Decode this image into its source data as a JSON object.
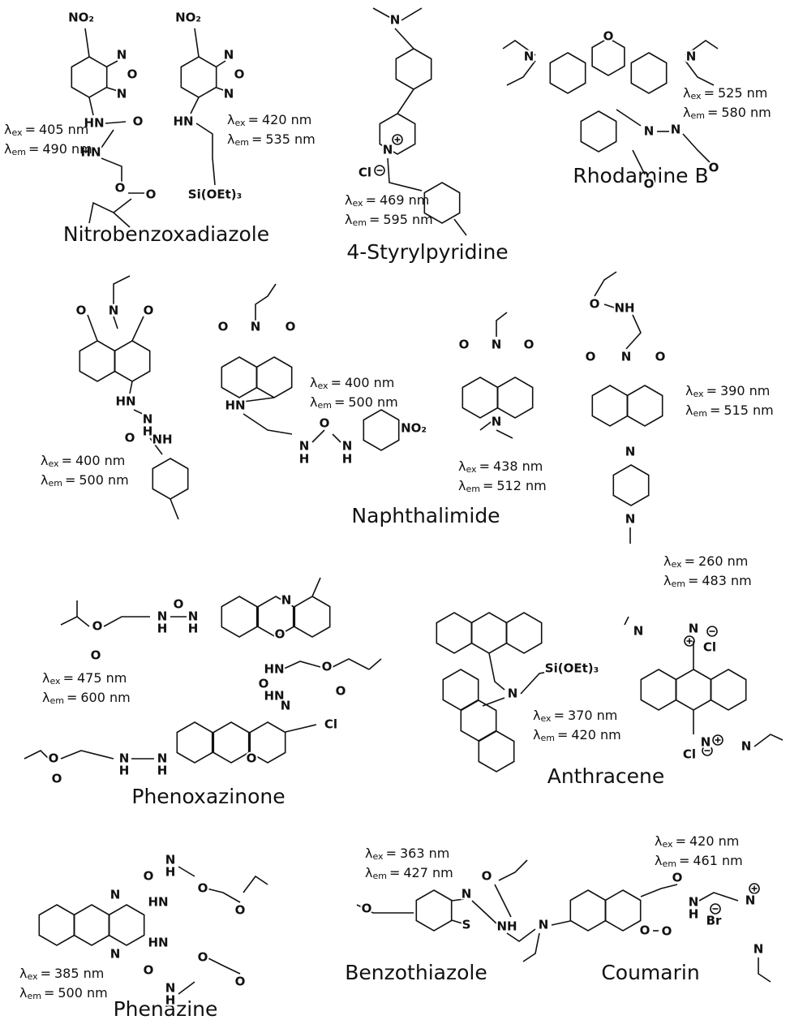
{
  "symbols": {
    "lambda": "λ",
    "ex": "ex",
    "em": "em",
    "equals": "="
  },
  "families": [
    {
      "name": "Nitrobenzoxadiazole",
      "compounds": [
        {
          "spectra": {
            "ex": "405 nm",
            "em": "490 nm"
          },
          "atoms": [
            "NO₂",
            "N",
            "O",
            "N",
            "HN",
            "O",
            "HN",
            "O",
            "O"
          ]
        },
        {
          "spectra": {
            "ex": "420 nm",
            "em": "535 nm"
          },
          "atoms": [
            "NO₂",
            "N",
            "O",
            "N",
            "HN",
            "Si(OEt)₃"
          ]
        }
      ]
    },
    {
      "name": "4-Styrylpyridine",
      "compounds": [
        {
          "spectra": {
            "ex": "469 nm",
            "em": "595 nm"
          },
          "atoms": [
            "N",
            "N",
            "Cl"
          ]
        }
      ]
    },
    {
      "name": "Rhodamine B",
      "compounds": [
        {
          "spectra": {
            "ex": "525 nm",
            "em": "580 nm"
          },
          "atoms": [
            "N",
            "N",
            "O",
            "N",
            "N",
            "O",
            "O"
          ]
        }
      ]
    },
    {
      "name": "Naphthalimide",
      "compounds": [
        {
          "spectra": {
            "ex": "400 nm",
            "em": "500 nm"
          },
          "atoms": [
            "O",
            "N",
            "O",
            "HN",
            "N",
            "H",
            "O",
            "NH"
          ]
        },
        {
          "spectra": {
            "ex": "400 nm",
            "em": "500 nm"
          },
          "atoms": [
            "O",
            "N",
            "O",
            "HN",
            "N",
            "H",
            "O",
            "N",
            "H",
            "NO₂"
          ]
        },
        {
          "spectra": {
            "ex": "438 nm",
            "em": "512 nm"
          },
          "atoms": [
            "O",
            "N",
            "O",
            "N"
          ]
        },
        {
          "spectra": {
            "ex": "390 nm",
            "em": "515 nm"
          },
          "atoms": [
            "O",
            "NH",
            "O",
            "N",
            "O",
            "N",
            "N"
          ]
        }
      ]
    },
    {
      "name": "Phenoxazinone",
      "compounds": [
        {
          "spectra": {
            "ex": "475 nm",
            "em": "600 nm"
          },
          "atoms": [
            "O",
            "O",
            "O",
            "N",
            "H",
            "N",
            "H",
            "N",
            "O"
          ]
        },
        {
          "atoms": [
            "HN",
            "O",
            "O",
            "O",
            "HN",
            "N",
            "Cl",
            "O",
            "O",
            "O",
            "N",
            "H",
            "N",
            "H"
          ]
        }
      ]
    },
    {
      "name": "Anthracene",
      "compounds": [
        {
          "spectra": {
            "ex": "370 nm",
            "em": "420 nm"
          },
          "atoms": [
            "N",
            "Si(OEt)₃"
          ]
        },
        {
          "spectra": {
            "ex": "260 nm",
            "em": "483 nm"
          },
          "atoms": [
            "N",
            "N",
            "Cl",
            "N",
            "N",
            "Cl"
          ]
        }
      ]
    },
    {
      "name": "Phenazine",
      "compounds": [
        {
          "spectra": {
            "ex": "385 nm",
            "em": "500 nm"
          },
          "atoms": [
            "N",
            "N",
            "O",
            "N",
            "H",
            "HN",
            "O",
            "O",
            "HN",
            "O",
            "N",
            "H",
            "O",
            "O"
          ]
        }
      ]
    },
    {
      "name": "Benzothiazole",
      "compounds": [
        {
          "spectra": {
            "ex": "363 nm",
            "em": "427 nm"
          },
          "atoms": [
            "O",
            "N",
            "S",
            "NH",
            "O"
          ]
        }
      ]
    },
    {
      "name": "Coumarin",
      "compounds": [
        {
          "spectra": {
            "ex": "420 nm",
            "em": "461 nm"
          },
          "atoms": [
            "N",
            "O",
            "O",
            "O",
            "N",
            "H",
            "Br",
            "N",
            "N"
          ]
        }
      ]
    }
  ]
}
